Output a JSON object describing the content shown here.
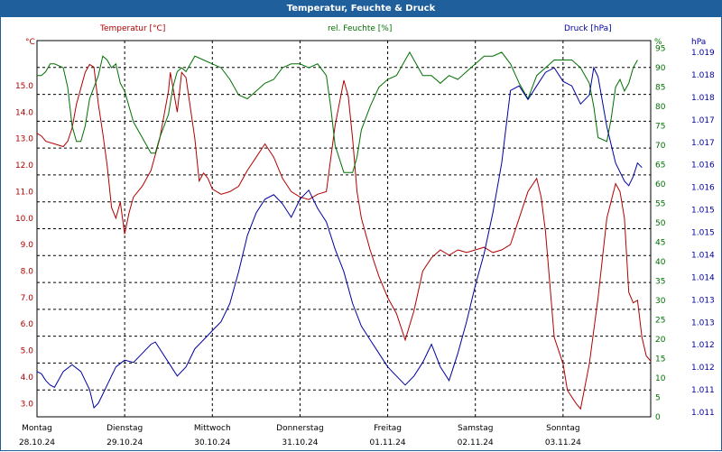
{
  "window": {
    "title": "Temperatur, Feuchte & Druck"
  },
  "legend": {
    "temperature": "Temperatur [°C]",
    "humidity": "rel. Feuchte [%]",
    "pressure": "Druck [hPa]"
  },
  "axes": {
    "left_unit": "°C",
    "right1_unit": "%",
    "right2_unit": "hPa",
    "left_ticks": [
      "15.0",
      "14.0",
      "13.0",
      "12.0",
      "11.0",
      "10.0",
      "9.0",
      "8.0",
      "7.0",
      "6.0",
      "5.0",
      "4.0",
      "3.0"
    ],
    "right1_ticks": [
      "95",
      "90",
      "85",
      "80",
      "75",
      "70",
      "65",
      "60",
      "55",
      "50",
      "45",
      "40",
      "35",
      "30",
      "25",
      "20",
      "15",
      "10",
      "5",
      "0"
    ],
    "right2_ticks": [
      "1.019",
      "1.018",
      "1.018",
      "1.017",
      "1.017",
      "1.016",
      "1.016",
      "1.015",
      "1.015",
      "1.014",
      "1.014",
      "1.013",
      "1.013",
      "1.012",
      "1.012",
      "1.011",
      "1.011"
    ],
    "days": [
      {
        "name": "Montag",
        "date": "28.10.24"
      },
      {
        "name": "Dienstag",
        "date": "29.10.24"
      },
      {
        "name": "Mittwoch",
        "date": "30.10.24"
      },
      {
        "name": "Donnerstag",
        "date": "31.10.24"
      },
      {
        "name": "Freitag",
        "date": "01.11.24"
      },
      {
        "name": "Samstag",
        "date": "02.11.24"
      },
      {
        "name": "Sonntag",
        "date": "03.11.24"
      }
    ]
  },
  "colors": {
    "temperature": "#b00000",
    "humidity": "#007000",
    "pressure": "#0000a0"
  },
  "chart_data": {
    "type": "line",
    "x_unit": "days since 28.10.24 00:00",
    "temp_range": [
      2.5,
      16.7
    ],
    "hum_range": [
      0,
      97
    ],
    "press_range": [
      1010.9,
      1019.2
    ],
    "series": [
      {
        "name": "Temperatur [°C]",
        "axis": "left",
        "points": [
          [
            0,
            13.2
          ],
          [
            0.05,
            13.1
          ],
          [
            0.1,
            12.9
          ],
          [
            0.2,
            12.8
          ],
          [
            0.3,
            12.7
          ],
          [
            0.35,
            12.9
          ],
          [
            0.4,
            13.4
          ],
          [
            0.45,
            14.3
          ],
          [
            0.55,
            15.5
          ],
          [
            0.6,
            15.8
          ],
          [
            0.65,
            15.7
          ],
          [
            0.7,
            14.3
          ],
          [
            0.75,
            13.2
          ],
          [
            0.8,
            12.0
          ],
          [
            0.85,
            10.4
          ],
          [
            0.9,
            10.0
          ],
          [
            0.95,
            10.6
          ],
          [
            1.0,
            9.4
          ],
          [
            1.05,
            10.2
          ],
          [
            1.1,
            10.8
          ],
          [
            1.2,
            11.2
          ],
          [
            1.3,
            11.8
          ],
          [
            1.4,
            13.0
          ],
          [
            1.5,
            14.8
          ],
          [
            1.52,
            15.5
          ],
          [
            1.6,
            14.0
          ],
          [
            1.65,
            15.5
          ],
          [
            1.7,
            15.3
          ],
          [
            1.8,
            13.0
          ],
          [
            1.85,
            11.4
          ],
          [
            1.9,
            11.7
          ],
          [
            1.95,
            11.5
          ],
          [
            2.0,
            11.1
          ],
          [
            2.1,
            10.9
          ],
          [
            2.2,
            11.0
          ],
          [
            2.3,
            11.2
          ],
          [
            2.4,
            11.8
          ],
          [
            2.5,
            12.3
          ],
          [
            2.6,
            12.8
          ],
          [
            2.7,
            12.3
          ],
          [
            2.8,
            11.5
          ],
          [
            2.9,
            11.0
          ],
          [
            3.0,
            10.8
          ],
          [
            3.1,
            10.7
          ],
          [
            3.2,
            10.9
          ],
          [
            3.3,
            11.0
          ],
          [
            3.4,
            13.5
          ],
          [
            3.5,
            15.2
          ],
          [
            3.55,
            14.6
          ],
          [
            3.6,
            13.0
          ],
          [
            3.65,
            11.0
          ],
          [
            3.7,
            10.0
          ],
          [
            3.8,
            8.8
          ],
          [
            3.9,
            7.8
          ],
          [
            4.0,
            7.0
          ],
          [
            4.1,
            6.4
          ],
          [
            4.2,
            5.4
          ],
          [
            4.3,
            6.5
          ],
          [
            4.4,
            8.0
          ],
          [
            4.5,
            8.5
          ],
          [
            4.6,
            8.8
          ],
          [
            4.7,
            8.6
          ],
          [
            4.8,
            8.8
          ],
          [
            4.9,
            8.7
          ],
          [
            5.0,
            8.8
          ],
          [
            5.1,
            8.9
          ],
          [
            5.2,
            8.7
          ],
          [
            5.3,
            8.8
          ],
          [
            5.4,
            9.0
          ],
          [
            5.5,
            10.0
          ],
          [
            5.6,
            11.0
          ],
          [
            5.7,
            11.5
          ],
          [
            5.75,
            10.8
          ],
          [
            5.8,
            9.5
          ],
          [
            5.85,
            7.5
          ],
          [
            5.9,
            5.5
          ],
          [
            6.0,
            4.5
          ],
          [
            6.05,
            3.5
          ],
          [
            6.15,
            3.0
          ],
          [
            6.2,
            2.8
          ],
          [
            6.3,
            4.5
          ],
          [
            6.4,
            7.0
          ],
          [
            6.5,
            10.0
          ],
          [
            6.6,
            11.3
          ],
          [
            6.65,
            11.0
          ],
          [
            6.7,
            10.0
          ],
          [
            6.75,
            7.2
          ],
          [
            6.8,
            6.8
          ],
          [
            6.85,
            6.9
          ],
          [
            6.9,
            5.5
          ],
          [
            6.95,
            4.8
          ],
          [
            7.0,
            4.6
          ]
        ]
      },
      {
        "name": "rel. Feuchte [%]",
        "axis": "right1",
        "points": [
          [
            0,
            88
          ],
          [
            0.05,
            88
          ],
          [
            0.1,
            89
          ],
          [
            0.15,
            91
          ],
          [
            0.2,
            91
          ],
          [
            0.3,
            90
          ],
          [
            0.35,
            85
          ],
          [
            0.4,
            75
          ],
          [
            0.45,
            71
          ],
          [
            0.5,
            71
          ],
          [
            0.55,
            75
          ],
          [
            0.6,
            82
          ],
          [
            0.7,
            88
          ],
          [
            0.75,
            93
          ],
          [
            0.8,
            92
          ],
          [
            0.85,
            90
          ],
          [
            0.9,
            91
          ],
          [
            0.95,
            86
          ],
          [
            1.0,
            84
          ],
          [
            1.05,
            80
          ],
          [
            1.1,
            76
          ],
          [
            1.2,
            72
          ],
          [
            1.3,
            68
          ],
          [
            1.35,
            68
          ],
          [
            1.4,
            72
          ],
          [
            1.5,
            78
          ],
          [
            1.55,
            85
          ],
          [
            1.6,
            89
          ],
          [
            1.65,
            90
          ],
          [
            1.7,
            89
          ],
          [
            1.8,
            93
          ],
          [
            1.9,
            92
          ],
          [
            2.0,
            91
          ],
          [
            2.1,
            90
          ],
          [
            2.2,
            87
          ],
          [
            2.3,
            83
          ],
          [
            2.4,
            82
          ],
          [
            2.5,
            84
          ],
          [
            2.6,
            86
          ],
          [
            2.7,
            87
          ],
          [
            2.8,
            90
          ],
          [
            2.9,
            91
          ],
          [
            3.0,
            91
          ],
          [
            3.1,
            90
          ],
          [
            3.2,
            91
          ],
          [
            3.3,
            88
          ],
          [
            3.35,
            80
          ],
          [
            3.4,
            70
          ],
          [
            3.5,
            63
          ],
          [
            3.6,
            63
          ],
          [
            3.65,
            67
          ],
          [
            3.7,
            74
          ],
          [
            3.8,
            80
          ],
          [
            3.9,
            85
          ],
          [
            4.0,
            87
          ],
          [
            4.1,
            88
          ],
          [
            4.2,
            92
          ],
          [
            4.25,
            94
          ],
          [
            4.3,
            92
          ],
          [
            4.4,
            88
          ],
          [
            4.5,
            88
          ],
          [
            4.6,
            86
          ],
          [
            4.7,
            88
          ],
          [
            4.8,
            87
          ],
          [
            4.9,
            89
          ],
          [
            5.0,
            91
          ],
          [
            5.1,
            93
          ],
          [
            5.2,
            93
          ],
          [
            5.3,
            94
          ],
          [
            5.4,
            91
          ],
          [
            5.5,
            86
          ],
          [
            5.6,
            82
          ],
          [
            5.7,
            88
          ],
          [
            5.8,
            90
          ],
          [
            5.9,
            92
          ],
          [
            6.0,
            92
          ],
          [
            6.1,
            92
          ],
          [
            6.2,
            90
          ],
          [
            6.3,
            86
          ],
          [
            6.35,
            80
          ],
          [
            6.4,
            72
          ],
          [
            6.5,
            71
          ],
          [
            6.55,
            77
          ],
          [
            6.6,
            85
          ],
          [
            6.65,
            87
          ],
          [
            6.7,
            84
          ],
          [
            6.75,
            86
          ],
          [
            6.8,
            90
          ],
          [
            6.85,
            92
          ]
        ]
      },
      {
        "name": "Druck [hPa]",
        "axis": "right2",
        "points": [
          [
            0,
            1011.9
          ],
          [
            0.05,
            1011.85
          ],
          [
            0.1,
            1011.7
          ],
          [
            0.15,
            1011.6
          ],
          [
            0.2,
            1011.55
          ],
          [
            0.3,
            1011.9
          ],
          [
            0.4,
            1012.05
          ],
          [
            0.5,
            1011.9
          ],
          [
            0.6,
            1011.5
          ],
          [
            0.65,
            1011.1
          ],
          [
            0.7,
            1011.2
          ],
          [
            0.75,
            1011.4
          ],
          [
            0.8,
            1011.6
          ],
          [
            0.9,
            1012.0
          ],
          [
            1.0,
            1012.15
          ],
          [
            1.1,
            1012.1
          ],
          [
            1.2,
            1012.3
          ],
          [
            1.3,
            1012.5
          ],
          [
            1.35,
            1012.55
          ],
          [
            1.4,
            1012.4
          ],
          [
            1.5,
            1012.1
          ],
          [
            1.6,
            1011.8
          ],
          [
            1.7,
            1012.0
          ],
          [
            1.8,
            1012.4
          ],
          [
            1.9,
            1012.6
          ],
          [
            2.0,
            1012.8
          ],
          [
            2.1,
            1013.0
          ],
          [
            2.2,
            1013.4
          ],
          [
            2.3,
            1014.1
          ],
          [
            2.4,
            1014.9
          ],
          [
            2.5,
            1015.4
          ],
          [
            2.6,
            1015.7
          ],
          [
            2.7,
            1015.8
          ],
          [
            2.8,
            1015.6
          ],
          [
            2.9,
            1015.3
          ],
          [
            3.0,
            1015.7
          ],
          [
            3.1,
            1015.9
          ],
          [
            3.2,
            1015.5
          ],
          [
            3.3,
            1015.2
          ],
          [
            3.4,
            1014.6
          ],
          [
            3.5,
            1014.1
          ],
          [
            3.6,
            1013.4
          ],
          [
            3.7,
            1012.9
          ],
          [
            3.8,
            1012.6
          ],
          [
            3.9,
            1012.3
          ],
          [
            4.0,
            1012.0
          ],
          [
            4.1,
            1011.8
          ],
          [
            4.2,
            1011.6
          ],
          [
            4.3,
            1011.8
          ],
          [
            4.4,
            1012.1
          ],
          [
            4.5,
            1012.5
          ],
          [
            4.6,
            1012.0
          ],
          [
            4.7,
            1011.7
          ],
          [
            4.8,
            1012.3
          ],
          [
            4.9,
            1013.0
          ],
          [
            5.0,
            1013.8
          ],
          [
            5.1,
            1014.5
          ],
          [
            5.2,
            1015.4
          ],
          [
            5.3,
            1016.5
          ],
          [
            5.4,
            1018.1
          ],
          [
            5.5,
            1018.2
          ],
          [
            5.6,
            1017.9
          ],
          [
            5.7,
            1018.2
          ],
          [
            5.8,
            1018.5
          ],
          [
            5.9,
            1018.6
          ],
          [
            6.0,
            1018.3
          ],
          [
            6.1,
            1018.2
          ],
          [
            6.2,
            1017.8
          ],
          [
            6.3,
            1018.0
          ],
          [
            6.35,
            1018.6
          ],
          [
            6.4,
            1018.4
          ],
          [
            6.5,
            1017.3
          ],
          [
            6.6,
            1016.5
          ],
          [
            6.7,
            1016.1
          ],
          [
            6.75,
            1016.0
          ],
          [
            6.8,
            1016.2
          ],
          [
            6.85,
            1016.5
          ],
          [
            6.9,
            1016.4
          ]
        ]
      }
    ]
  }
}
